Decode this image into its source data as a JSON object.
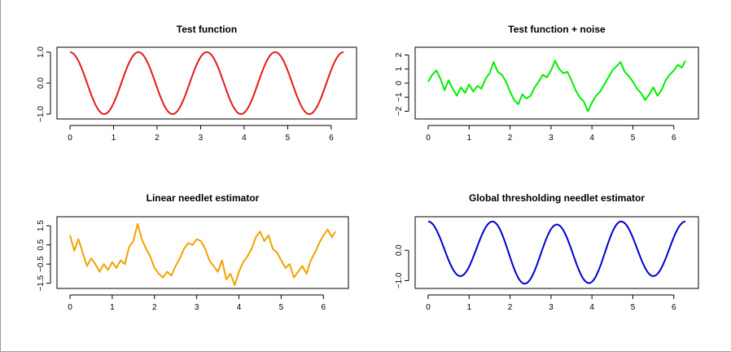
{
  "chart_data": [
    {
      "type": "line",
      "title": "Test function",
      "color": "#e31a1c",
      "xlim": [
        0,
        6.283
      ],
      "ylim": [
        -1,
        1
      ],
      "xticks": [
        0,
        1,
        2,
        3,
        4,
        5,
        6
      ],
      "yticks": [
        -1.0,
        0.0,
        1.0
      ],
      "ytick_labels": [
        "−1.0",
        "0.0",
        "1.0"
      ],
      "formula": "cos(4x)",
      "series": [
        {
          "x_range": [
            0,
            6.283
          ],
          "description_values": [
            1.0,
            -1.0,
            1.0,
            -1.0,
            1.0,
            -1.0,
            1.0,
            -1.0,
            1.0
          ],
          "x_at_values": [
            0,
            0.785,
            1.571,
            2.356,
            3.142,
            3.927,
            4.712,
            5.498,
            6.283
          ]
        }
      ]
    },
    {
      "type": "line",
      "title": "Test function + noise",
      "color": "#00ee00",
      "xlim": [
        0,
        6.283
      ],
      "ylim": [
        -2.2,
        2.2
      ],
      "xticks": [
        0,
        1,
        2,
        3,
        4,
        5,
        6
      ],
      "yticks": [
        -2,
        -1,
        0,
        1,
        2
      ],
      "ytick_labels": [
        "−2",
        "−1",
        "0",
        "1",
        "2"
      ],
      "series": [
        {
          "x": [
            0,
            0.1,
            0.2,
            0.3,
            0.4,
            0.5,
            0.6,
            0.7,
            0.8,
            0.9,
            1.0,
            1.1,
            1.2,
            1.3,
            1.4,
            1.5,
            1.6,
            1.7,
            1.8,
            1.9,
            2.0,
            2.1,
            2.2,
            2.3,
            2.4,
            2.5,
            2.6,
            2.7,
            2.8,
            2.9,
            3.0,
            3.1,
            3.2,
            3.3,
            3.4,
            3.5,
            3.6,
            3.7,
            3.8,
            3.9,
            4.0,
            4.1,
            4.2,
            4.3,
            4.4,
            4.5,
            4.6,
            4.7,
            4.8,
            4.9,
            5.0,
            5.1,
            5.2,
            5.3,
            5.4,
            5.5,
            5.6,
            5.7,
            5.8,
            5.9,
            6.0,
            6.1,
            6.2,
            6.28
          ],
          "y": [
            0.1,
            0.6,
            0.9,
            0.3,
            -0.5,
            0.2,
            -0.4,
            -0.9,
            -0.3,
            -0.7,
            -0.1,
            -0.6,
            -0.2,
            -0.4,
            0.3,
            0.7,
            1.5,
            0.8,
            0.6,
            0.1,
            -0.6,
            -1.2,
            -1.5,
            -0.8,
            -1.1,
            -0.9,
            -0.3,
            0.1,
            0.6,
            0.4,
            0.9,
            1.6,
            1.0,
            0.7,
            0.8,
            0.2,
            -0.5,
            -1.0,
            -1.3,
            -2.0,
            -1.4,
            -0.9,
            -0.6,
            -0.1,
            0.4,
            0.9,
            1.2,
            1.5,
            0.8,
            0.5,
            0.1,
            -0.4,
            -0.7,
            -1.2,
            -0.8,
            -0.3,
            -0.9,
            -0.5,
            0.2,
            0.6,
            0.9,
            1.3,
            1.1,
            1.6
          ]
        }
      ]
    },
    {
      "type": "line",
      "title": "Linear needlet estimator",
      "color": "#f2a100",
      "xlim": [
        0,
        6.283
      ],
      "ylim": [
        -1.6,
        1.8
      ],
      "xticks": [
        0,
        1,
        2,
        3,
        4,
        5,
        6
      ],
      "yticks": [
        -1.5,
        -0.5,
        0.5,
        1.5
      ],
      "ytick_labels": [
        "−1.5",
        "−0.5",
        "0.5",
        "1.5"
      ],
      "series": [
        {
          "x": [
            0,
            0.1,
            0.2,
            0.3,
            0.4,
            0.5,
            0.6,
            0.7,
            0.8,
            0.9,
            1.0,
            1.1,
            1.2,
            1.3,
            1.4,
            1.5,
            1.6,
            1.7,
            1.8,
            1.9,
            2.0,
            2.1,
            2.2,
            2.3,
            2.4,
            2.5,
            2.6,
            2.7,
            2.8,
            2.9,
            3.0,
            3.1,
            3.2,
            3.3,
            3.4,
            3.5,
            3.6,
            3.7,
            3.8,
            3.9,
            4.0,
            4.1,
            4.2,
            4.3,
            4.4,
            4.5,
            4.6,
            4.7,
            4.8,
            4.9,
            5.0,
            5.1,
            5.2,
            5.3,
            5.4,
            5.5,
            5.6,
            5.7,
            5.8,
            5.9,
            6.0,
            6.1,
            6.2,
            6.28
          ],
          "y": [
            1.0,
            0.2,
            0.8,
            0.1,
            -0.6,
            -0.2,
            -0.5,
            -0.9,
            -0.5,
            -0.8,
            -0.4,
            -0.7,
            -0.3,
            -0.5,
            0.4,
            0.7,
            1.6,
            0.8,
            0.3,
            -0.1,
            -0.7,
            -1.0,
            -1.2,
            -0.9,
            -1.1,
            -0.6,
            -0.2,
            0.3,
            0.6,
            0.5,
            0.8,
            0.7,
            0.3,
            -0.3,
            -0.6,
            -0.9,
            -0.3,
            -1.3,
            -1.0,
            -1.6,
            -0.9,
            -0.4,
            -0.1,
            0.3,
            0.9,
            1.2,
            0.7,
            1.0,
            0.3,
            0.1,
            -0.3,
            -0.7,
            -0.5,
            -1.2,
            -0.9,
            -0.6,
            -1.0,
            -0.3,
            0.1,
            0.6,
            1.0,
            1.3,
            0.9,
            1.2
          ]
        }
      ]
    },
    {
      "type": "line",
      "title": "Global thresholding needlet estimator",
      "color": "#0000cc",
      "xlim": [
        0,
        6.283
      ],
      "ylim": [
        -1.15,
        1.0
      ],
      "xticks": [
        0,
        1,
        2,
        3,
        4,
        5,
        6
      ],
      "yticks": [
        -1.0,
        0.0
      ],
      "ytick_labels": [
        "−1.0",
        "0.0"
      ],
      "formula": "approx cos(4x), troughs -0.85 to -1.1",
      "series": [
        {
          "x_at_values": [
            0,
            0.785,
            1.571,
            2.356,
            3.142,
            3.927,
            4.712,
            5.498,
            6.283
          ],
          "description_values": [
            0.95,
            -0.85,
            0.95,
            -1.1,
            0.85,
            -1.08,
            0.95,
            -0.85,
            0.95
          ]
        }
      ]
    }
  ]
}
